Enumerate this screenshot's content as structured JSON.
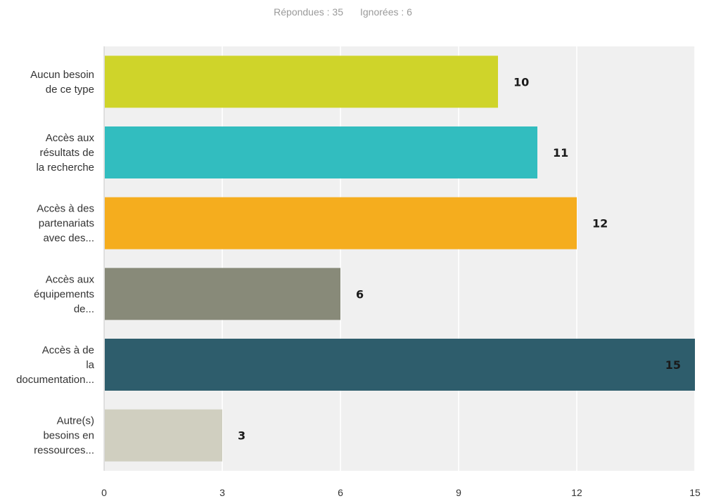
{
  "summary": {
    "answered_label": "Répondues : 35",
    "skipped_label": "Ignorées : 6"
  },
  "chart_data": {
    "type": "bar",
    "orientation": "horizontal",
    "categories": [
      [
        "Aucun besoin",
        "de ce type"
      ],
      [
        "Accès aux",
        "résultats de",
        "la recherche"
      ],
      [
        "Accès à des",
        "partenariats",
        "avec des..."
      ],
      [
        "Accès aux",
        "équipements",
        "de..."
      ],
      [
        "Accès à de",
        "la",
        "documentation..."
      ],
      [
        "Autre(s)",
        "besoins en",
        "ressources..."
      ]
    ],
    "values": [
      10,
      11,
      12,
      6,
      15,
      3
    ],
    "colors": [
      "#cfd42a",
      "#32bdbf",
      "#f5ad1e",
      "#888a79",
      "#2e5d6c",
      "#d0cfc0"
    ],
    "xlim": [
      0,
      15
    ],
    "xticks": [
      0,
      3,
      6,
      9,
      12,
      15
    ],
    "grid": true,
    "legend": "none"
  }
}
